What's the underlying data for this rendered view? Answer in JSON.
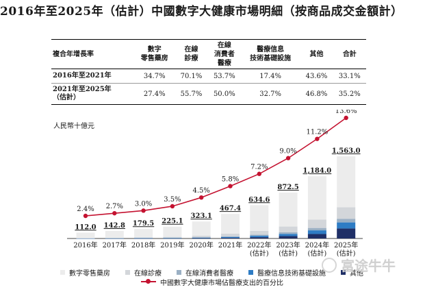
{
  "title": "2016年至2025年（估計）中國數字大健康市場明細（按商品成交金額計）",
  "cagr_table": {
    "headers": [
      "複合年增長率",
      "數字\n零售藥房",
      "在線\n診療",
      "在線\n消費者\n醫療",
      "醫療信息\n技術基礎設施",
      "其他",
      "合計"
    ],
    "rows": [
      {
        "period": "2016年至2021年",
        "values": [
          "34.7%",
          "70.1%",
          "53.7%",
          "17.4%",
          "43.6%",
          "33.1%"
        ]
      },
      {
        "period": "2021年至2025年\n（估計）",
        "values": [
          "27.4%",
          "55.7%",
          "50.0%",
          "32.7%",
          "46.8%",
          "35.2%"
        ]
      }
    ]
  },
  "chart_data": {
    "type": "bar",
    "stacked": true,
    "ylabel": "人民幣十億元",
    "categories": [
      "2016年",
      "2017年",
      "2018年",
      "2019年",
      "2020年",
      "2021年",
      "2022年\n(估計)",
      "2023年\n(估計)",
      "2024年\n(估計)",
      "2025年\n(估計)"
    ],
    "totals": [
      112.0,
      142.8,
      179.5,
      225.1,
      323.1,
      467.4,
      634.6,
      872.5,
      1184.0,
      1563.0
    ],
    "total_labels": [
      "112.0",
      "142.8",
      "179.5",
      "225.1",
      "323.1",
      "467.4",
      "634.6",
      "872.5",
      "1,184.0",
      "1,563.0"
    ],
    "series": [
      {
        "name": "其他",
        "color": "#1f2f66",
        "values": [
          1,
          2,
          3,
          4,
          6,
          12,
          25,
          45,
          85,
          190
        ]
      },
      {
        "name": "醫療信息技術基礎設施",
        "color": "#2e7cc4",
        "values": [
          2,
          3,
          4,
          5,
          9,
          17,
          26,
          42,
          70,
          115
        ]
      },
      {
        "name": "在線消費者醫療",
        "color": "#9bb0c4",
        "values": [
          3,
          4,
          5,
          7,
          10,
          14,
          20,
          30,
          45,
          70
        ]
      },
      {
        "name": "在線診療",
        "color": "#d3d6da",
        "values": [
          4,
          6,
          9,
          15,
          28,
          50,
          75,
          110,
          160,
          220
        ]
      },
      {
        "name": "數字零售藥房",
        "color": "#ececec",
        "values": [
          102.0,
          127.8,
          158.5,
          194.1,
          270.1,
          374.4,
          488.6,
          645.5,
          824.0,
          968.0
        ]
      }
    ],
    "line": {
      "name": "中國數字大健康市場佔醫療支出的百分比",
      "color": "#c41230",
      "values": [
        2.4,
        2.7,
        3.0,
        3.5,
        4.5,
        5.8,
        7.2,
        9.0,
        11.2,
        13.6
      ],
      "labels": [
        "2.4%",
        "2.7%",
        "3.0%",
        "3.5%",
        "4.5%",
        "5.8%",
        "7.2%",
        "9.0%",
        "11.2%",
        "13.6%"
      ]
    }
  },
  "legend": {
    "row1": [
      "數字零售藥房",
      "在線診療",
      "在線消費者醫療",
      "醫療信息技術基礎設施",
      "其他"
    ],
    "row2": "中國數字大健康市場佔醫療支出的百分比",
    "colors": [
      "#ececec",
      "#d3d6da",
      "#9bb0c4",
      "#2e7cc4",
      "#1f2f66"
    ]
  },
  "watermark": {
    "text": "富途牛牛"
  }
}
